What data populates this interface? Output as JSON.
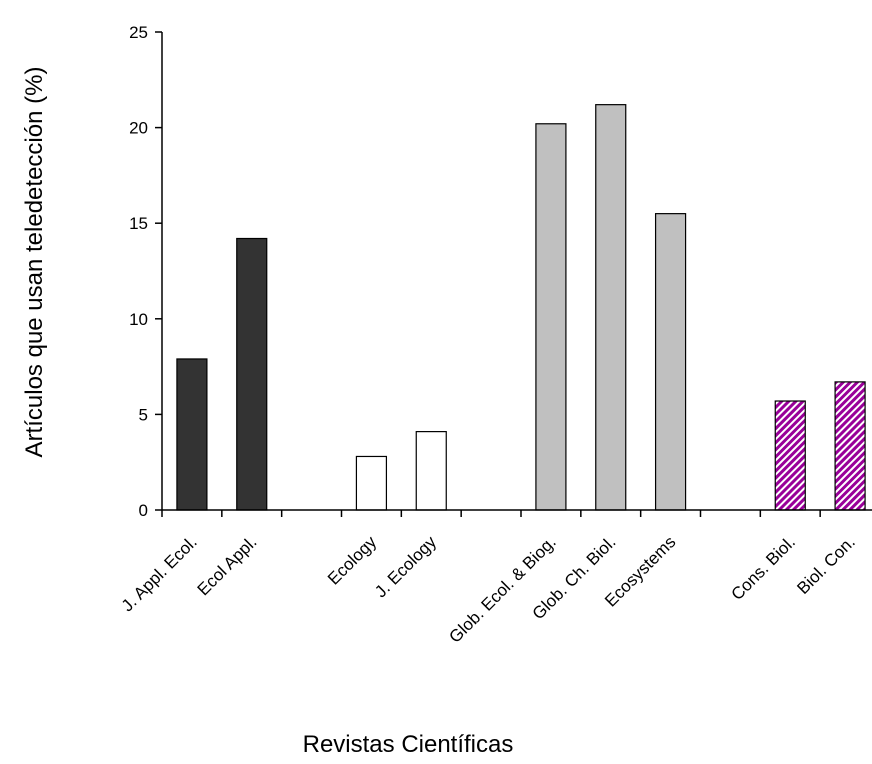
{
  "chart_data": {
    "type": "bar",
    "title": "",
    "xlabel": "Revistas Científicas",
    "ylabel": "Artículos que usan teledetección (%)",
    "ylim": [
      0,
      25
    ],
    "yticks": [
      0,
      5,
      10,
      15,
      20,
      25
    ],
    "grid": false,
    "legend": "none",
    "slots": [
      "J. Appl. Ecol.",
      "Ecol Appl.",
      "",
      "Ecology",
      "J. Ecology",
      "",
      "Glob. Ecol. & Biog.",
      "Glob. Ch. Biol.",
      "Ecosystems",
      "",
      "Cons. Biol.",
      "Biol. Con."
    ],
    "categories": [
      "J. Appl. Ecol.",
      "Ecol Appl.",
      "Ecology",
      "J. Ecology",
      "Glob. Ecol. & Biog.",
      "Glob. Ch. Biol.",
      "Ecosystems",
      "Cons. Biol.",
      "Biol. Con."
    ],
    "values": [
      7.9,
      14.2,
      2.8,
      4.1,
      20.2,
      21.2,
      15.5,
      5.7,
      6.7
    ],
    "groups": [
      {
        "categories": [
          "J. Appl. Ecol.",
          "Ecol Appl."
        ],
        "fill": "#333333",
        "pattern": "solid"
      },
      {
        "categories": [
          "Ecology",
          "J. Ecology"
        ],
        "fill": "#ffffff",
        "pattern": "solid"
      },
      {
        "categories": [
          "Glob. Ecol. & Biog.",
          "Glob. Ch. Biol.",
          "Ecosystems"
        ],
        "fill": "#c0c0c0",
        "pattern": "solid"
      },
      {
        "categories": [
          "Cons. Biol.",
          "Biol. Con."
        ],
        "fill": "#990099",
        "pattern": "diagonal-stripes"
      }
    ],
    "colors": {
      "axis": "#000000",
      "bar_outline": "#000000",
      "stripe_light": "#ffffff"
    }
  }
}
